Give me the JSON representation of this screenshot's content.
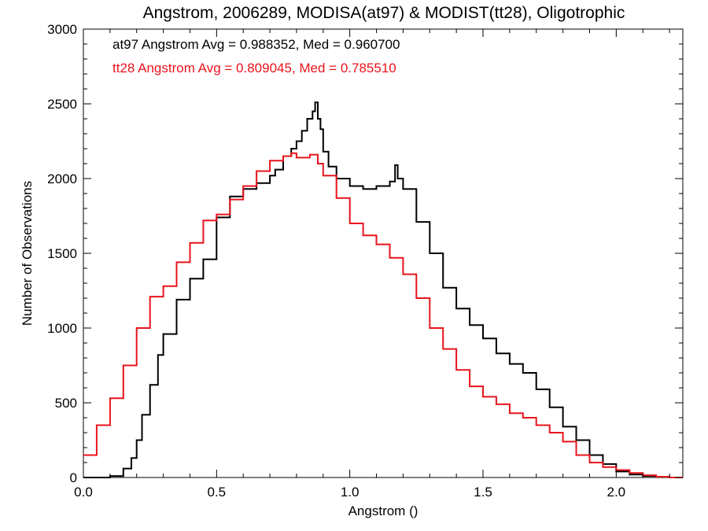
{
  "chart_data": {
    "type": "line",
    "title": "Angstrom, 2006289, MODISA(at97) & MODIST(tt28), Oligotrophic",
    "xlabel": "Angstrom ()",
    "ylabel": "Number of Observations",
    "xlim": [
      0.0,
      2.25
    ],
    "ylim": [
      0,
      3000
    ],
    "xticks": [
      "0.0",
      "0.5",
      "1.0",
      "1.5",
      "2.0"
    ],
    "yticks": [
      "0",
      "500",
      "1000",
      "1500",
      "2000",
      "2500",
      "3000"
    ],
    "step": true,
    "grid": false,
    "annotations": [
      {
        "text": "at97 Angstrom Avg = 0.988352, Med = 0.960700",
        "color": "#000000"
      },
      {
        "text": "tt28 Angstrom Avg = 0.809045, Med = 0.785510",
        "color": "#e8141c"
      }
    ],
    "series": [
      {
        "id": "at97",
        "color": "#000000",
        "x": [
          0.0,
          0.1,
          0.15,
          0.18,
          0.2,
          0.22,
          0.25,
          0.28,
          0.3,
          0.35,
          0.4,
          0.45,
          0.5,
          0.55,
          0.6,
          0.65,
          0.7,
          0.72,
          0.75,
          0.78,
          0.8,
          0.82,
          0.84,
          0.86,
          0.87,
          0.88,
          0.89,
          0.9,
          0.92,
          0.95,
          1.0,
          1.05,
          1.1,
          1.15,
          1.17,
          1.18,
          1.2,
          1.25,
          1.3,
          1.35,
          1.4,
          1.45,
          1.5,
          1.55,
          1.6,
          1.65,
          1.7,
          1.75,
          1.8,
          1.85,
          1.9,
          1.95,
          2.0,
          2.05,
          2.1,
          2.15,
          2.2,
          2.25
        ],
        "y": [
          0,
          10,
          60,
          130,
          250,
          420,
          620,
          820,
          960,
          1190,
          1330,
          1460,
          1740,
          1880,
          1930,
          1970,
          2020,
          2060,
          2150,
          2200,
          2250,
          2320,
          2400,
          2450,
          2510,
          2400,
          2330,
          2180,
          2080,
          2000,
          1950,
          1930,
          1950,
          1980,
          2090,
          2000,
          1930,
          1710,
          1500,
          1270,
          1130,
          1020,
          930,
          830,
          760,
          700,
          590,
          470,
          340,
          250,
          150,
          90,
          40,
          20,
          10,
          5,
          0,
          0
        ]
      },
      {
        "id": "tt28",
        "color": "#e8141c",
        "x": [
          0.0,
          0.05,
          0.1,
          0.15,
          0.2,
          0.25,
          0.3,
          0.35,
          0.4,
          0.45,
          0.5,
          0.55,
          0.6,
          0.65,
          0.7,
          0.75,
          0.78,
          0.8,
          0.85,
          0.88,
          0.9,
          0.95,
          1.0,
          1.05,
          1.1,
          1.15,
          1.2,
          1.25,
          1.3,
          1.35,
          1.4,
          1.45,
          1.5,
          1.55,
          1.6,
          1.65,
          1.7,
          1.75,
          1.8,
          1.85,
          1.9,
          1.95,
          2.0,
          2.05,
          2.1,
          2.15,
          2.2,
          2.25
        ],
        "y": [
          150,
          350,
          530,
          750,
          1000,
          1210,
          1280,
          1440,
          1570,
          1720,
          1760,
          1860,
          1950,
          2050,
          2120,
          2150,
          2170,
          2140,
          2160,
          2100,
          2020,
          1870,
          1700,
          1620,
          1560,
          1470,
          1360,
          1200,
          1000,
          860,
          720,
          610,
          540,
          490,
          430,
          400,
          350,
          300,
          240,
          150,
          100,
          70,
          50,
          30,
          15,
          5,
          0,
          0
        ]
      }
    ]
  }
}
